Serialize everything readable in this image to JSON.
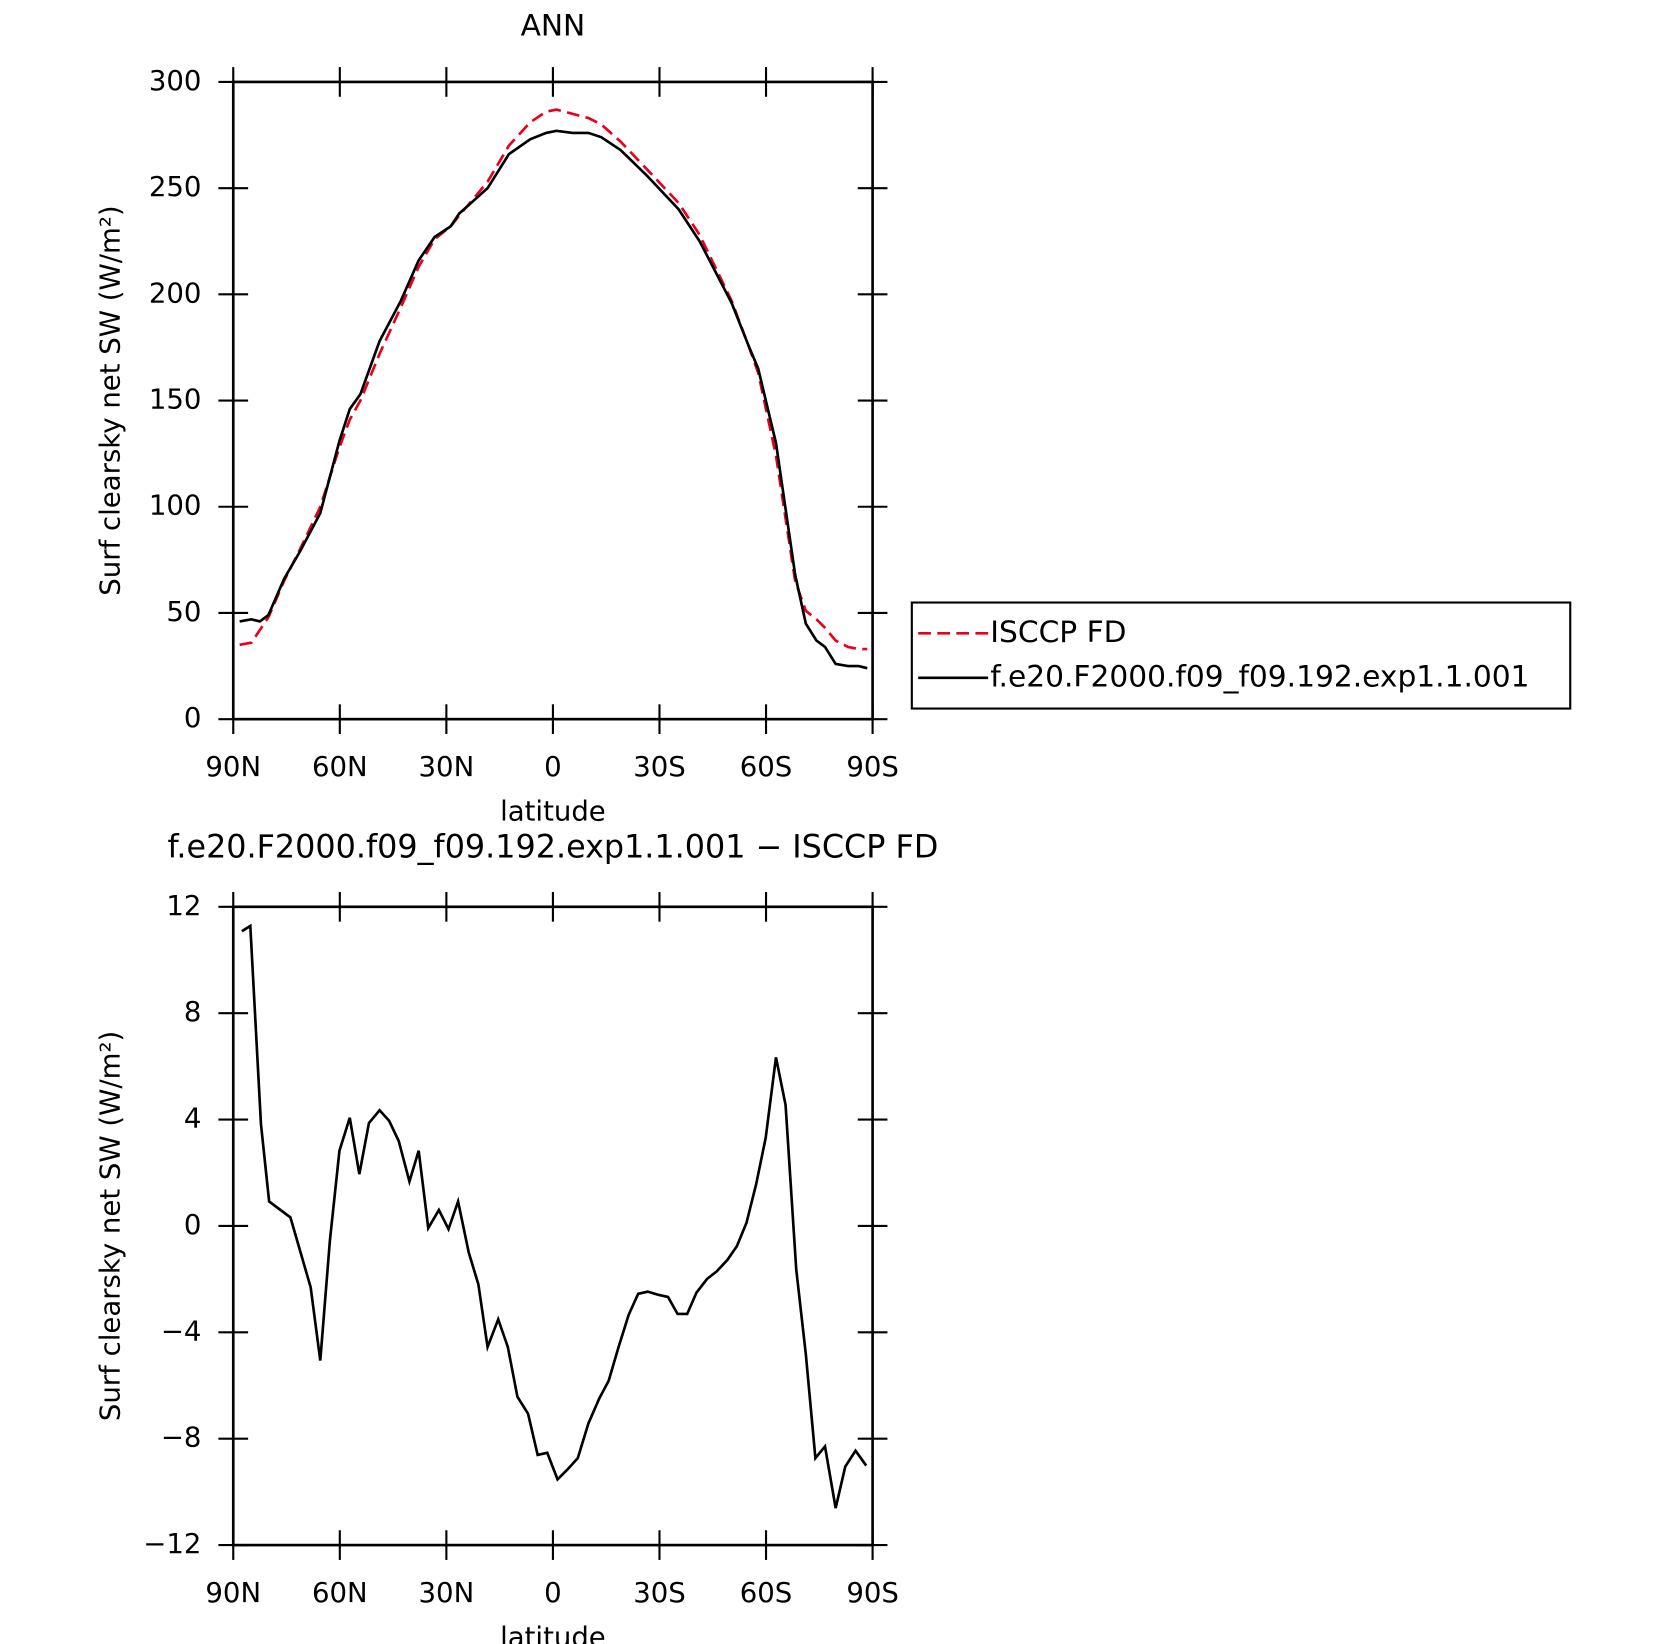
{
  "chart_data": [
    {
      "type": "line",
      "title": "ANN",
      "xlabel": "latitude",
      "ylabel": "Surf clearsky net SW (W/m²)",
      "x": [
        88.2,
        84.9,
        82.5,
        80.1,
        75.7,
        71.2,
        65.5,
        60.1,
        57.2,
        54.2,
        48.8,
        42.8,
        37.8,
        33.3,
        28.8,
        26.4,
        18.4,
        12.4,
        6.4,
        1.9,
        -1.0,
        -5.5,
        -10.0,
        -13.6,
        -19.0,
        -26.4,
        -35.4,
        -41.3,
        -50.3,
        -54.8,
        -57.8,
        -62.8,
        -68.2,
        -71.2,
        -74.2,
        -76.6,
        -79.6,
        -83.1,
        -86.1,
        -88.5
      ],
      "series": [
        {
          "name": "ISCCP FD",
          "color": "#e8001c",
          "dash": true,
          "values": [
            35,
            36,
            42,
            48,
            65,
            80,
            100,
            128,
            141,
            150,
            172,
            194,
            213,
            226,
            232,
            237,
            253,
            270,
            281,
            286,
            287,
            285,
            283,
            280,
            272,
            259,
            243,
            228,
            197,
            177,
            163,
            124,
            65,
            51,
            47,
            43,
            37,
            34,
            33,
            33
          ]
        },
        {
          "name": "f.e20.F2000.f09_f09.192.exp1.1.001",
          "color": "#000000",
          "dash": false,
          "values": [
            46,
            47,
            46,
            49,
            66,
            79,
            97,
            131,
            146,
            153,
            178,
            197,
            216,
            227,
            232,
            238,
            250,
            266,
            273,
            276,
            277,
            276,
            276,
            274,
            268,
            256,
            240,
            225,
            196,
            177,
            165,
            130,
            68,
            45,
            37,
            34,
            26,
            25,
            25,
            24
          ]
        }
      ],
      "xlim": [
        90,
        -90
      ],
      "xticks": [
        {
          "value": 90,
          "label": "90N"
        },
        {
          "value": 60,
          "label": "60N"
        },
        {
          "value": 30,
          "label": "30N"
        },
        0,
        {
          "value": -30,
          "label": "30S"
        },
        {
          "value": -60,
          "label": "60S"
        },
        {
          "value": -90,
          "label": "90S"
        }
      ],
      "ylim": [
        0,
        300
      ],
      "yticks": [
        0,
        50,
        100,
        150,
        200,
        250,
        300
      ],
      "legend": "outside-right"
    },
    {
      "type": "line",
      "title": "f.e20.F2000.f09_f09.192.exp1.1.001 − ISCCP FD",
      "xlabel": "latitude",
      "ylabel": "Surf clearsky net SW (W/m²)",
      "x": [
        87.6,
        85.2,
        82.2,
        79.9,
        73.9,
        68.2,
        65.5,
        62.8,
        60.1,
        57.2,
        54.5,
        51.8,
        48.8,
        46.1,
        43.4,
        40.4,
        37.8,
        35.1,
        32.1,
        29.4,
        26.7,
        23.7,
        21.0,
        18.4,
        15.4,
        12.7,
        10.0,
        7.0,
        4.3,
        1.6,
        -1.3,
        -4.0,
        -7.0,
        -10.0,
        -13.0,
        -15.7,
        -18.4,
        -21.3,
        -24.0,
        -26.7,
        -29.7,
        -32.4,
        -35.1,
        -37.8,
        -40.4,
        -43.4,
        -46.1,
        -49.1,
        -51.8,
        -54.5,
        -57.2,
        -59.9,
        -62.8,
        -65.5,
        -68.5,
        -71.2,
        -73.9,
        -76.6,
        -79.6,
        -82.3,
        -85.2,
        -88.2
      ],
      "series": [
        {
          "color": "#000000",
          "dash": false,
          "values": [
            11.08,
            11.28,
            3.83,
            0.92,
            0.32,
            -2.31,
            -5.06,
            -0.56,
            2.83,
            4.07,
            1.95,
            3.87,
            4.35,
            3.95,
            3.19,
            1.67,
            2.83,
            -0.08,
            0.6,
            -0.12,
            0.92,
            -1.0,
            -2.19,
            -4.55,
            -3.51,
            -4.55,
            -6.42,
            -7.06,
            -8.61,
            -8.53,
            -9.53,
            -9.17,
            -8.73,
            -7.42,
            -6.5,
            -5.82,
            -4.59,
            -3.35,
            -2.55,
            -2.47,
            -2.59,
            -2.67,
            -3.31,
            -3.31,
            -2.51,
            -1.99,
            -1.71,
            -1.28,
            -0.76,
            0.12,
            1.56,
            3.31,
            6.34,
            4.55,
            -1.63,
            -4.82,
            -8.73,
            -8.29,
            -10.61,
            -9.05,
            -8.45,
            -9.01
          ]
        }
      ],
      "xlim": [
        90,
        -90
      ],
      "xticks": [
        {
          "value": 90,
          "label": "90N"
        },
        {
          "value": 60,
          "label": "60N"
        },
        {
          "value": 30,
          "label": "30N"
        },
        0,
        {
          "value": -30,
          "label": "30S"
        },
        {
          "value": -60,
          "label": "60S"
        },
        {
          "value": -90,
          "label": "90S"
        }
      ],
      "ylim": [
        -12,
        12
      ],
      "yticks": [
        {
          "value": -12,
          "label": "−12"
        },
        {
          "value": -8,
          "label": "−8"
        },
        {
          "value": -4,
          "label": "−4"
        },
        0,
        4,
        8,
        12
      ]
    }
  ]
}
